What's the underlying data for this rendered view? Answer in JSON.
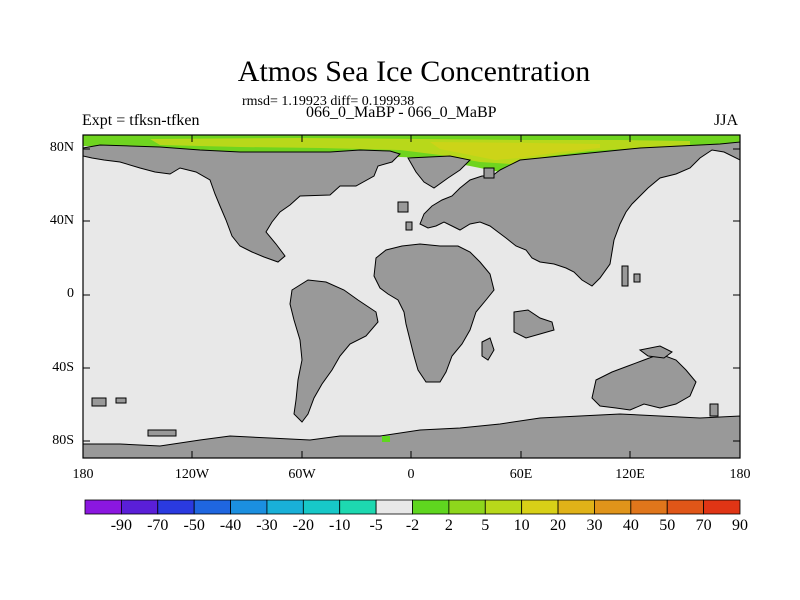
{
  "header": {
    "title": "Atmos Sea Ice Concentration",
    "stats": "rmsd= 1.19923 diff= 0.199938",
    "periods": "066_0_MaBP - 066_0_MaBP",
    "experiment": "Expt = tfksn-tfken",
    "season": "JJA"
  },
  "map": {
    "ocean_color": "#e8e8e8",
    "land_color": "#999999",
    "y_ticks": [
      "80N",
      "40N",
      "0",
      "40S",
      "80S"
    ],
    "x_ticks": [
      "180",
      "120W",
      "60W",
      "0",
      "60E",
      "120E",
      "180"
    ]
  },
  "chart_data": {
    "type": "heatmap",
    "title": "Atmos Sea Ice Concentration",
    "x_range": [
      -180,
      180
    ],
    "y_range": [
      -90,
      90
    ],
    "colorbar": {
      "labels": [
        "-90",
        "-70",
        "-50",
        "-40",
        "-30",
        "-20",
        "-10",
        "-5",
        "-2",
        "2",
        "5",
        "10",
        "20",
        "30",
        "40",
        "50",
        "70",
        "90"
      ],
      "colors": [
        "#8b17e0",
        "#5a1fd8",
        "#2a3ae0",
        "#1f66e0",
        "#1b8fe0",
        "#19b0d8",
        "#17c8c8",
        "#1dd8b0",
        "#e8e8e8",
        "#5fd61f",
        "#8ed61c",
        "#b8d81a",
        "#d8d017",
        "#e0b218",
        "#e0941a",
        "#e0761b",
        "#e05618",
        "#e03515"
      ]
    },
    "anomaly_region": "Arctic Ocean, positive values (+5 to +20)"
  }
}
